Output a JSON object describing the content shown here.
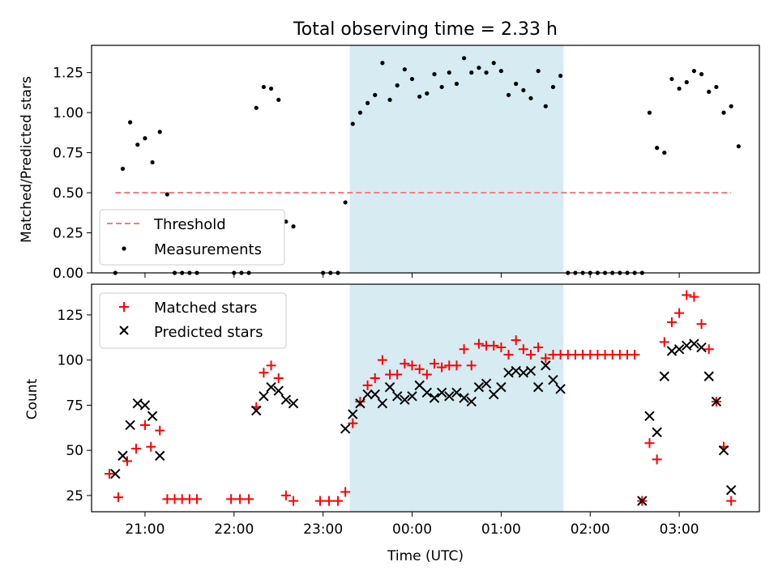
{
  "chart_data": [
    {
      "type": "scatter",
      "title": "Total observing time = 2.33 h",
      "ylabel": "Matched/Predicted stars",
      "xlabel": "",
      "xlim": [
        "20:24",
        "03:54"
      ],
      "ylim": [
        0,
        1.42
      ],
      "yticks": [
        0.0,
        0.25,
        0.5,
        0.75,
        1.0,
        1.25
      ],
      "ytick_labels": [
        "0.00",
        "0.25",
        "0.50",
        "0.75",
        "1.00",
        "1.25"
      ],
      "xticks": [
        "21:00",
        "22:00",
        "23:00",
        "00:00",
        "01:00",
        "02:00",
        "03:00"
      ],
      "shaded_interval": [
        "23:18",
        "01:42"
      ],
      "shade_color": "#add8e6",
      "legend_position": "lower left",
      "series": [
        {
          "name": "Threshold",
          "style": "dashed-line",
          "color": "#f08080",
          "points": [
            [
              "20:40",
              0.5
            ],
            [
              "03:35",
              0.5
            ]
          ]
        },
        {
          "name": "Measurements",
          "style": "dot",
          "color": "#000000",
          "points": [
            [
              "20:40",
              0.0
            ],
            [
              "20:45",
              0.65
            ],
            [
              "20:50",
              0.94
            ],
            [
              "20:55",
              0.8
            ],
            [
              "21:00",
              0.84
            ],
            [
              "21:05",
              0.69
            ],
            [
              "21:10",
              0.88
            ],
            [
              "21:15",
              0.49
            ],
            [
              "21:20",
              0.0
            ],
            [
              "21:25",
              0.0
            ],
            [
              "21:30",
              0.0
            ],
            [
              "21:35",
              0.0
            ],
            [
              "22:00",
              0.0
            ],
            [
              "22:05",
              0.0
            ],
            [
              "22:10",
              0.0
            ],
            [
              "22:15",
              1.03
            ],
            [
              "22:20",
              1.16
            ],
            [
              "22:25",
              1.15
            ],
            [
              "22:30",
              1.08
            ],
            [
              "22:35",
              0.32
            ],
            [
              "22:40",
              0.29
            ],
            [
              "23:00",
              0.0
            ],
            [
              "23:05",
              0.0
            ],
            [
              "23:10",
              0.0
            ],
            [
              "23:15",
              0.44
            ],
            [
              "23:20",
              0.93
            ],
            [
              "23:25",
              1.0
            ],
            [
              "23:30",
              1.06
            ],
            [
              "23:35",
              1.11
            ],
            [
              "23:40",
              1.31
            ],
            [
              "23:45",
              1.08
            ],
            [
              "23:50",
              1.17
            ],
            [
              "23:55",
              1.27
            ],
            [
              "00:00",
              1.21
            ],
            [
              "00:05",
              1.1
            ],
            [
              "00:10",
              1.12
            ],
            [
              "00:15",
              1.24
            ],
            [
              "00:20",
              1.16
            ],
            [
              "00:25",
              1.25
            ],
            [
              "00:30",
              1.18
            ],
            [
              "00:35",
              1.34
            ],
            [
              "00:40",
              1.25
            ],
            [
              "00:45",
              1.28
            ],
            [
              "00:50",
              1.25
            ],
            [
              "00:55",
              1.31
            ],
            [
              "01:00",
              1.26
            ],
            [
              "01:05",
              1.11
            ],
            [
              "01:10",
              1.18
            ],
            [
              "01:15",
              1.14
            ],
            [
              "01:20",
              1.09
            ],
            [
              "01:25",
              1.26
            ],
            [
              "01:30",
              1.04
            ],
            [
              "01:35",
              1.16
            ],
            [
              "01:40",
              1.23
            ],
            [
              "01:45",
              0.0
            ],
            [
              "01:50",
              0.0
            ],
            [
              "01:55",
              0.0
            ],
            [
              "02:00",
              0.0
            ],
            [
              "02:05",
              0.0
            ],
            [
              "02:10",
              0.0
            ],
            [
              "02:15",
              0.0
            ],
            [
              "02:20",
              0.0
            ],
            [
              "02:25",
              0.0
            ],
            [
              "02:30",
              0.0
            ],
            [
              "02:35",
              0.0
            ],
            [
              "02:40",
              1.0
            ],
            [
              "02:45",
              0.78
            ],
            [
              "02:50",
              0.75
            ],
            [
              "02:55",
              1.21
            ],
            [
              "03:00",
              1.15
            ],
            [
              "03:05",
              1.19
            ],
            [
              "03:10",
              1.26
            ],
            [
              "03:15",
              1.24
            ],
            [
              "03:20",
              1.13
            ],
            [
              "03:25",
              1.16
            ],
            [
              "03:30",
              1.0
            ],
            [
              "03:35",
              1.04
            ],
            [
              "03:40",
              0.79
            ]
          ]
        }
      ]
    },
    {
      "type": "scatter",
      "title": "",
      "ylabel": "Count",
      "xlabel": "Time (UTC)",
      "xlim": [
        "20:24",
        "03:54"
      ],
      "ylim": [
        16,
        142
      ],
      "yticks": [
        25,
        50,
        75,
        100,
        125
      ],
      "ytick_labels": [
        "25",
        "50",
        "75",
        "100",
        "125"
      ],
      "xticks": [
        "21:00",
        "22:00",
        "23:00",
        "00:00",
        "01:00",
        "02:00",
        "03:00"
      ],
      "xtick_labels": [
        "21:00",
        "22:00",
        "23:00",
        "00:00",
        "01:00",
        "02:00",
        "03:00"
      ],
      "shaded_interval": [
        "23:18",
        "01:42"
      ],
      "shade_color": "#add8e6",
      "legend_position": "upper left",
      "series": [
        {
          "name": "Matched stars",
          "style": "plus",
          "color": "#ff0000",
          "points": [
            [
              "20:36",
              37
            ],
            [
              "20:42",
              24
            ],
            [
              "20:48",
              44
            ],
            [
              "20:54",
              51
            ],
            [
              "21:00",
              64
            ],
            [
              "21:04",
              52
            ],
            [
              "21:10",
              61
            ],
            [
              "21:15",
              23
            ],
            [
              "21:20",
              23
            ],
            [
              "21:25",
              23
            ],
            [
              "21:30",
              23
            ],
            [
              "21:35",
              23
            ],
            [
              "21:58",
              23
            ],
            [
              "22:04",
              23
            ],
            [
              "22:10",
              23
            ],
            [
              "22:15",
              74
            ],
            [
              "22:20",
              93
            ],
            [
              "22:25",
              97
            ],
            [
              "22:30",
              90
            ],
            [
              "22:35",
              25
            ],
            [
              "22:40",
              22
            ],
            [
              "22:58",
              22
            ],
            [
              "23:04",
              22
            ],
            [
              "23:10",
              22
            ],
            [
              "23:15",
              27
            ],
            [
              "23:20",
              65
            ],
            [
              "23:25",
              77
            ],
            [
              "23:30",
              86
            ],
            [
              "23:35",
              90
            ],
            [
              "23:40",
              100
            ],
            [
              "23:45",
              92
            ],
            [
              "23:50",
              92
            ],
            [
              "23:55",
              98
            ],
            [
              "00:00",
              97
            ],
            [
              "00:05",
              95
            ],
            [
              "00:10",
              92
            ],
            [
              "00:15",
              98
            ],
            [
              "00:20",
              96
            ],
            [
              "00:25",
              97
            ],
            [
              "00:30",
              97
            ],
            [
              "00:35",
              106
            ],
            [
              "00:40",
              97
            ],
            [
              "00:45",
              109
            ],
            [
              "00:50",
              108
            ],
            [
              "00:55",
              108
            ],
            [
              "01:00",
              107
            ],
            [
              "01:05",
              103
            ],
            [
              "01:10",
              111
            ],
            [
              "01:15",
              106
            ],
            [
              "01:20",
              103
            ],
            [
              "01:25",
              107
            ],
            [
              "01:30",
              101
            ],
            [
              "01:35",
              103
            ],
            [
              "01:40",
              103
            ],
            [
              "01:45",
              103
            ],
            [
              "01:50",
              103
            ],
            [
              "01:55",
              103
            ],
            [
              "02:00",
              103
            ],
            [
              "02:05",
              103
            ],
            [
              "02:10",
              103
            ],
            [
              "02:15",
              103
            ],
            [
              "02:20",
              103
            ],
            [
              "02:25",
              103
            ],
            [
              "02:30",
              103
            ],
            [
              "02:35",
              22
            ],
            [
              "02:40",
              54
            ],
            [
              "02:45",
              45
            ],
            [
              "02:50",
              110
            ],
            [
              "02:55",
              121
            ],
            [
              "03:00",
              126
            ],
            [
              "03:05",
              136
            ],
            [
              "03:10",
              135
            ],
            [
              "03:15",
              120
            ],
            [
              "03:20",
              106
            ],
            [
              "03:25",
              77
            ],
            [
              "03:30",
              52
            ],
            [
              "03:35",
              22
            ]
          ]
        },
        {
          "name": "Predicted stars",
          "style": "x",
          "color": "#000000",
          "points": [
            [
              "20:40",
              37
            ],
            [
              "20:45",
              47
            ],
            [
              "20:50",
              64
            ],
            [
              "20:55",
              76
            ],
            [
              "21:00",
              75
            ],
            [
              "21:05",
              69
            ],
            [
              "21:10",
              47
            ],
            [
              "22:15",
              72
            ],
            [
              "22:20",
              80
            ],
            [
              "22:25",
              85
            ],
            [
              "22:30",
              83
            ],
            [
              "22:35",
              78
            ],
            [
              "22:40",
              76
            ],
            [
              "23:15",
              62
            ],
            [
              "23:20",
              70
            ],
            [
              "23:25",
              76
            ],
            [
              "23:30",
              81
            ],
            [
              "23:35",
              81
            ],
            [
              "23:40",
              76
            ],
            [
              "23:45",
              85
            ],
            [
              "23:50",
              80
            ],
            [
              "23:55",
              78
            ],
            [
              "00:00",
              80
            ],
            [
              "00:05",
              86
            ],
            [
              "00:10",
              82
            ],
            [
              "00:15",
              79
            ],
            [
              "00:20",
              82
            ],
            [
              "00:25",
              80
            ],
            [
              "00:30",
              82
            ],
            [
              "00:35",
              79
            ],
            [
              "00:40",
              77
            ],
            [
              "00:45",
              85
            ],
            [
              "00:50",
              87
            ],
            [
              "00:55",
              81
            ],
            [
              "01:00",
              85
            ],
            [
              "01:05",
              93
            ],
            [
              "01:10",
              94
            ],
            [
              "01:15",
              93
            ],
            [
              "01:20",
              94
            ],
            [
              "01:25",
              85
            ],
            [
              "01:30",
              97
            ],
            [
              "01:35",
              89
            ],
            [
              "01:40",
              84
            ],
            [
              "02:35",
              22
            ],
            [
              "02:40",
              69
            ],
            [
              "02:45",
              60
            ],
            [
              "02:50",
              91
            ],
            [
              "02:55",
              105
            ],
            [
              "03:00",
              106
            ],
            [
              "03:05",
              108
            ],
            [
              "03:10",
              109
            ],
            [
              "03:15",
              107
            ],
            [
              "03:20",
              91
            ],
            [
              "03:25",
              77
            ],
            [
              "03:30",
              50
            ],
            [
              "03:35",
              28
            ]
          ]
        }
      ]
    }
  ]
}
